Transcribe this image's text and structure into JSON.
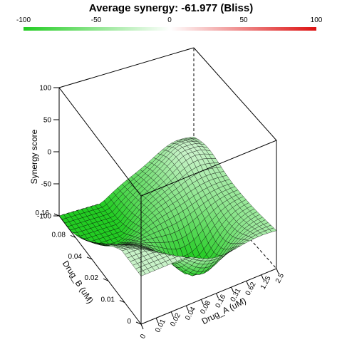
{
  "chart_data": {
    "type": "surface",
    "title": "Average synergy: -61.977 (Bliss)",
    "color_scale": {
      "ticks": [
        "-100",
        "-50",
        "0",
        "50",
        "100"
      ],
      "min": -100,
      "max": 100,
      "low_color": "#22cc22",
      "mid_color": "#ffffff",
      "high_color": "#dd1111"
    },
    "zlabel": "Synergy score",
    "xlabel": "Drug_A (uM)",
    "ylabel": "Drug_B (uM)",
    "zlim": [
      -100,
      100
    ],
    "z_ticks": [
      "100",
      "50",
      "0",
      "-50",
      "-100"
    ],
    "x_ticks": [
      "0",
      "0.01",
      "0.02",
      "0.04",
      "0.08",
      "0.16",
      "0.31",
      "0.62",
      "1.25",
      "2.5"
    ],
    "y_ticks": [
      "0",
      "0.01",
      "0.02",
      "0.04",
      "0.08",
      "0.16"
    ],
    "surface": {
      "corner_values": {
        "a0_b0": 0,
        "a_max_b0": -40,
        "a0_b_max": -95,
        "a_max_b_max": -50
      },
      "min_value": -100,
      "max_value": -25
    }
  }
}
